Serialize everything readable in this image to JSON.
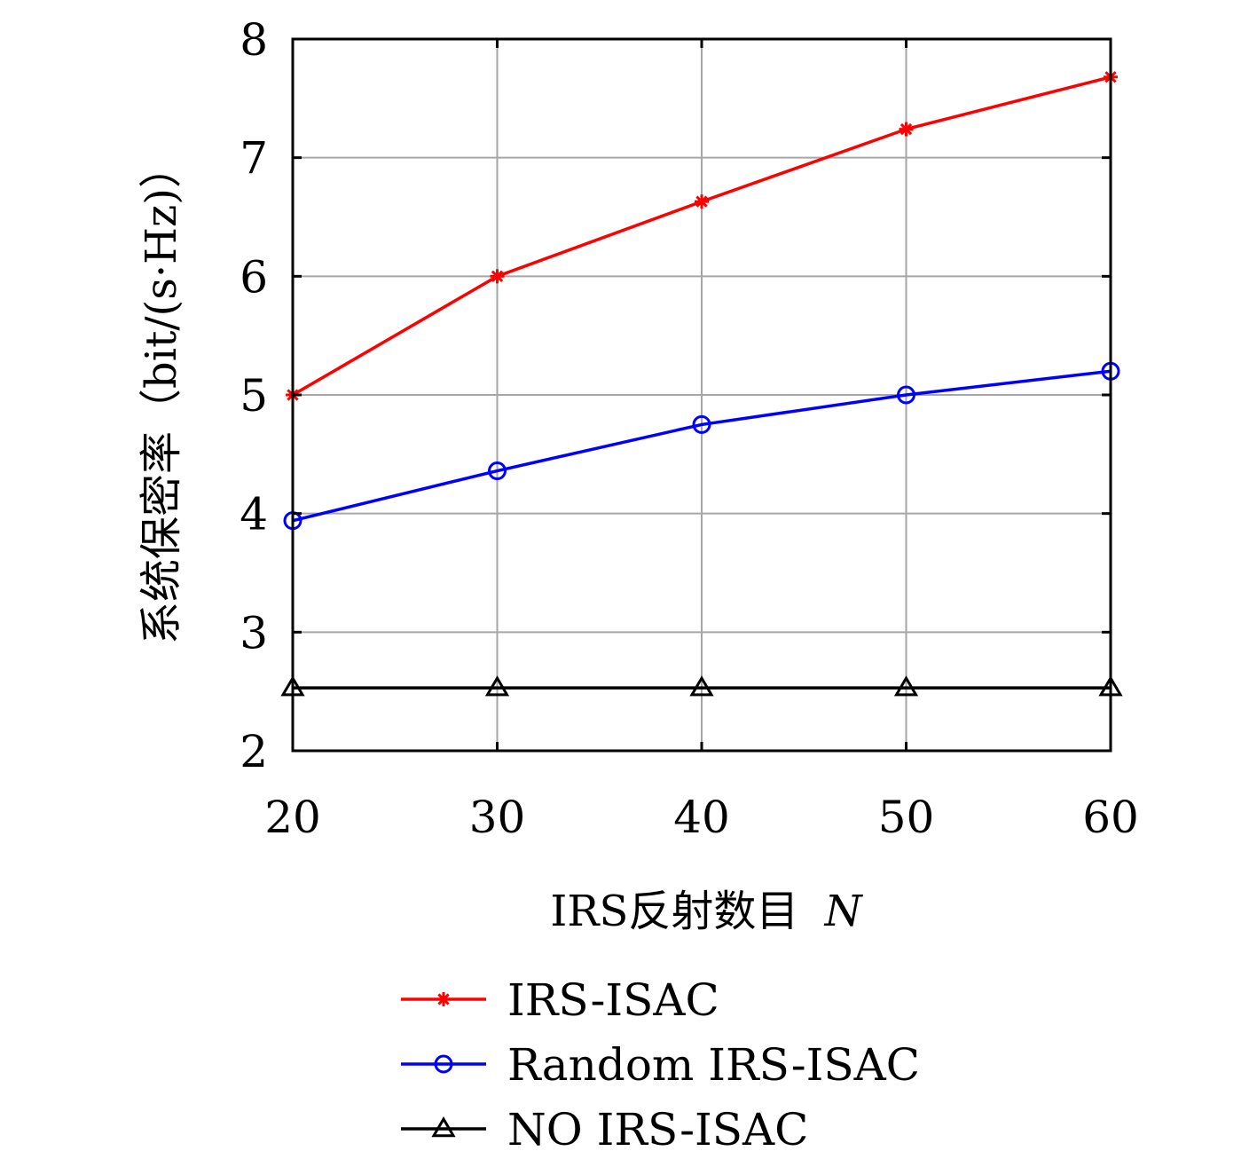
{
  "chart_data": {
    "type": "line",
    "xlabel": "IRS反射数目",
    "xlabel_var": "N",
    "ylabel": "系统保密率（bit/(s·Hz)）",
    "x": [
      20,
      30,
      40,
      50,
      60
    ],
    "xlim": [
      20,
      60
    ],
    "ylim": [
      2,
      8
    ],
    "xticks": [
      "20",
      "30",
      "40",
      "50",
      "60"
    ],
    "yticks": [
      "2",
      "3",
      "4",
      "5",
      "6",
      "7",
      "8"
    ],
    "grid": true,
    "legend_position": "bottom",
    "series": [
      {
        "name": "IRS-ISAC",
        "color": "#ff0000",
        "marker": "asterisk",
        "values": [
          5.0,
          6.0,
          6.63,
          7.24,
          7.68
        ]
      },
      {
        "name": "Random IRS-ISAC",
        "color": "#0000ff",
        "marker": "circle",
        "values": [
          3.94,
          4.36,
          4.75,
          5.0,
          5.2
        ]
      },
      {
        "name": "NO IRS-ISAC",
        "color": "#000000",
        "marker": "triangle",
        "values": [
          2.53,
          2.53,
          2.53,
          2.53,
          2.53
        ]
      }
    ]
  }
}
